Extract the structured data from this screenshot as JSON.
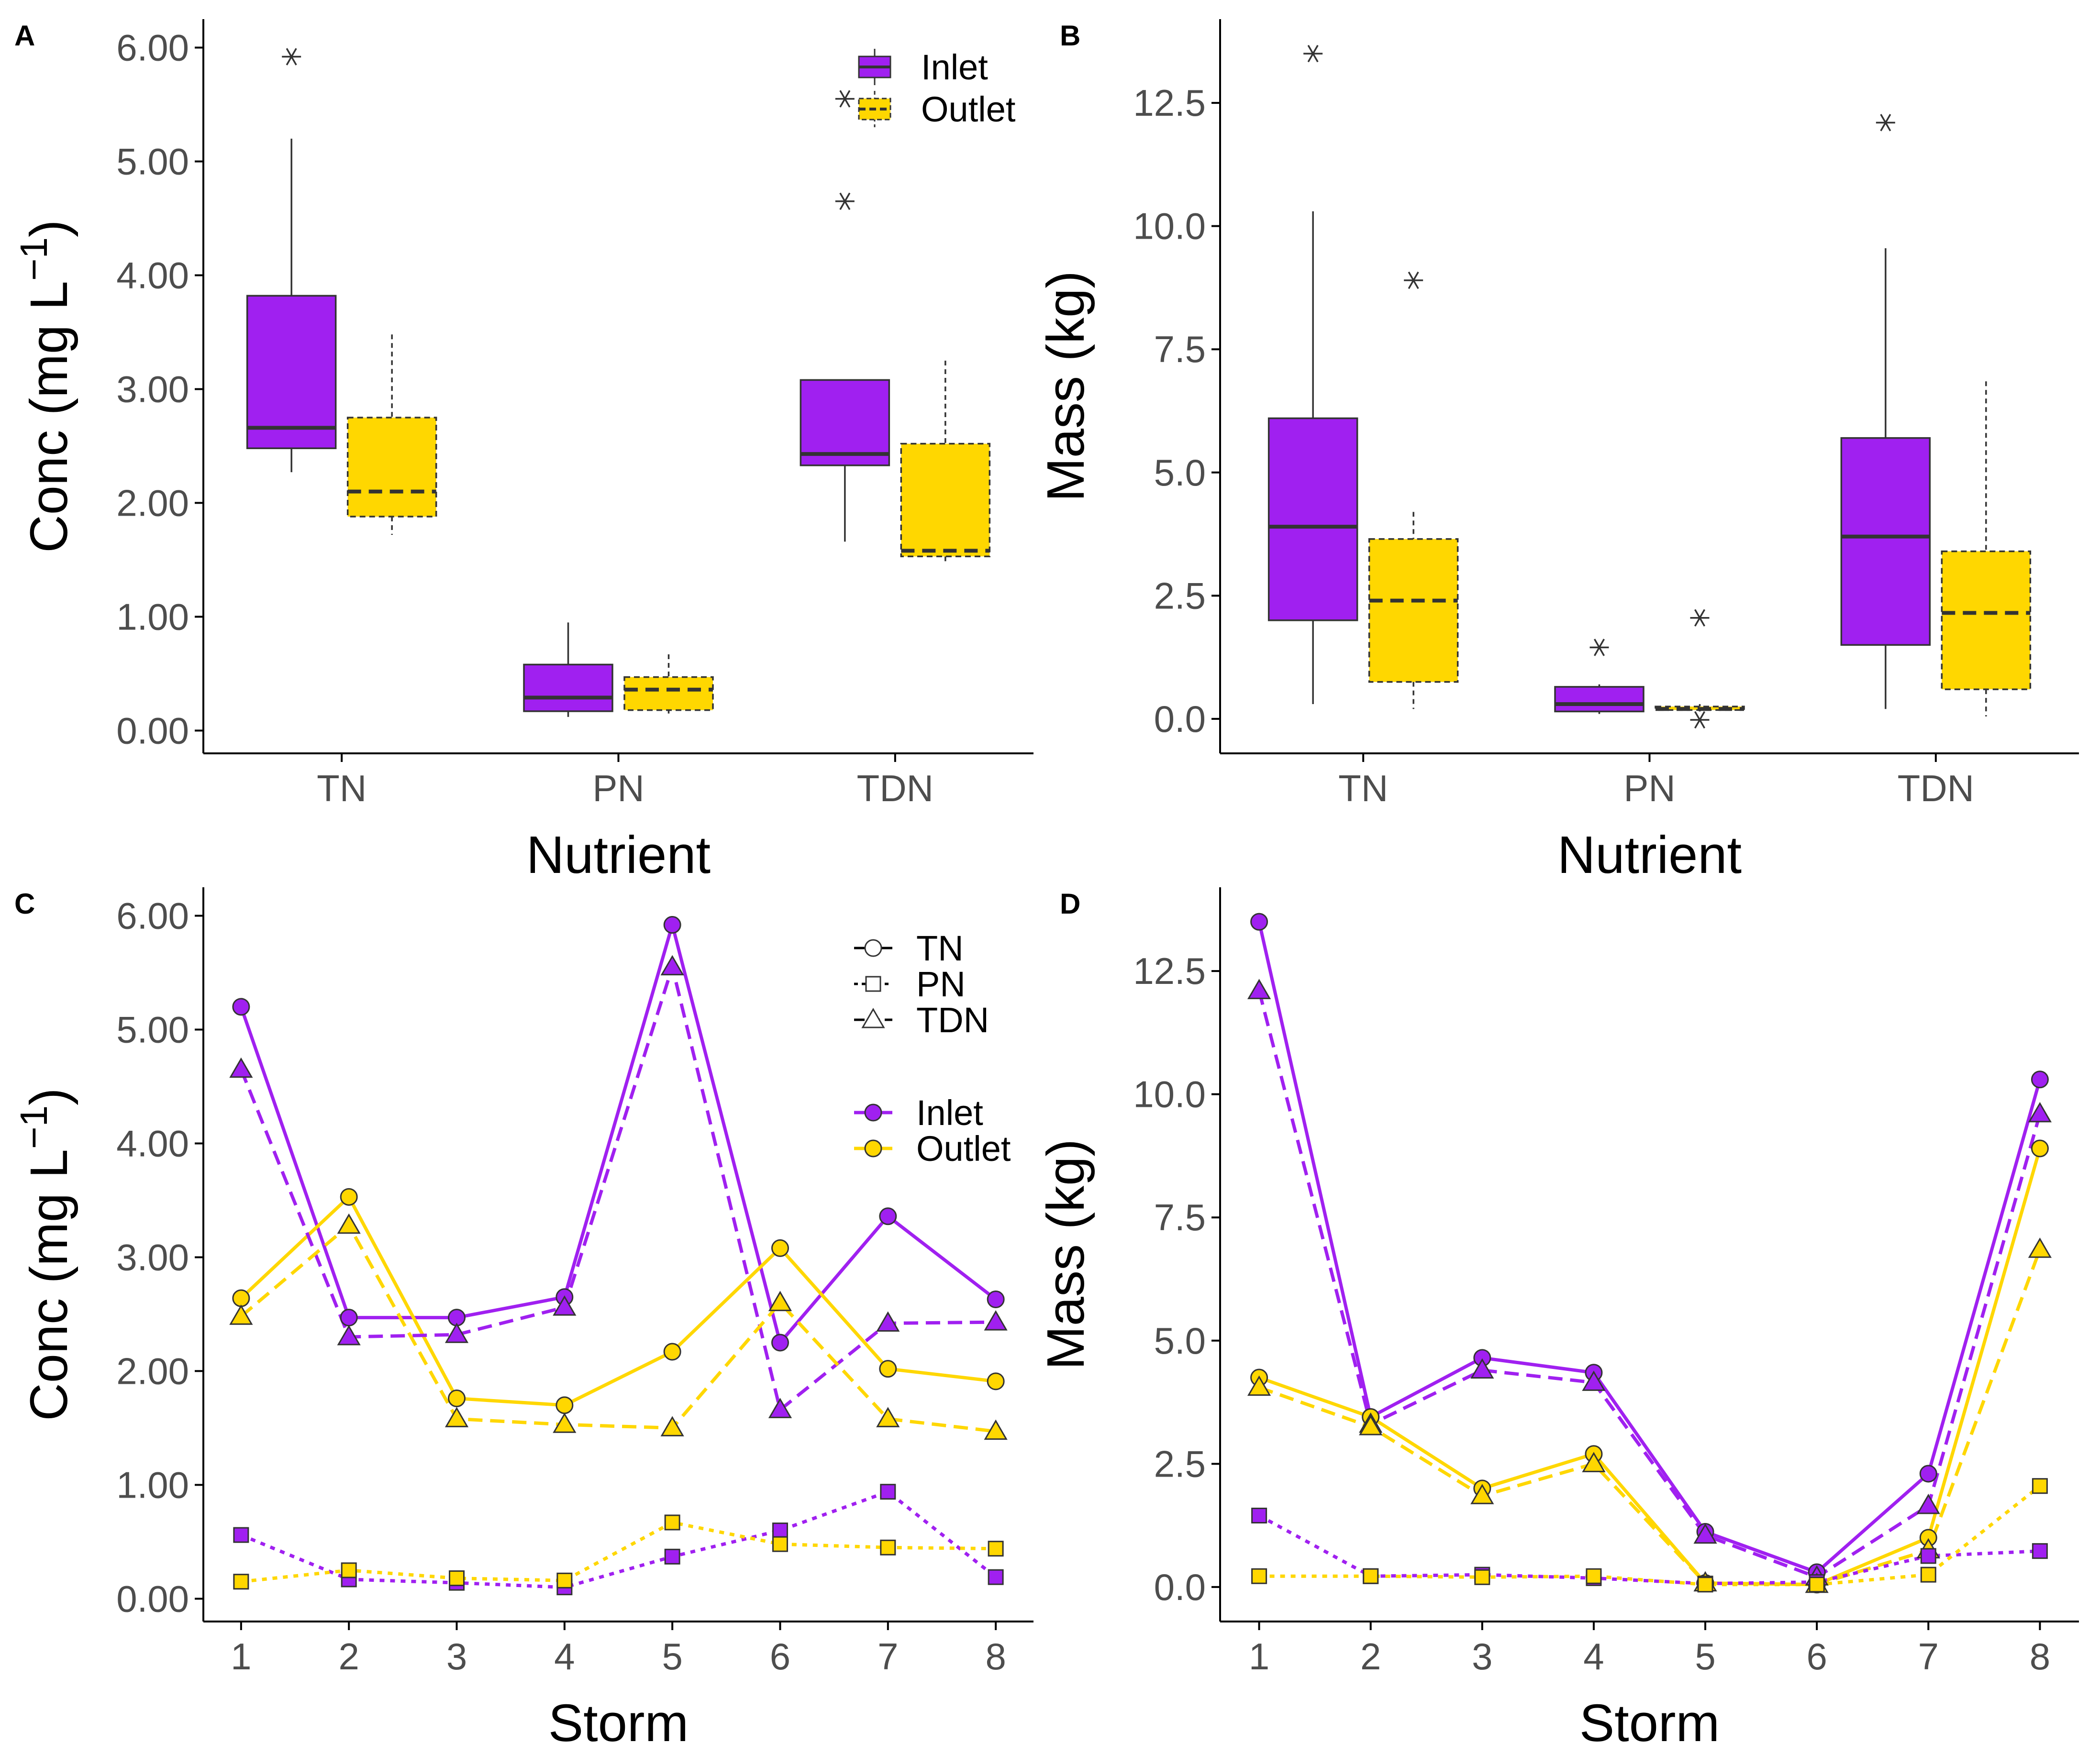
{
  "colors": {
    "inlet": "#A020F0",
    "outlet": "#FFD700",
    "outline": "#333333",
    "axis": "#000000"
  },
  "chart_data": [
    {
      "panel": "A",
      "type": "box",
      "xlabel": "Nutrient",
      "ylabel": "Conc (mg L",
      "ylabel_sup": "−1",
      "ylabel_close": ")",
      "ylim": [
        -0.2,
        6.25
      ],
      "yticks": [
        0,
        1,
        2,
        3,
        4,
        5,
        6
      ],
      "ytick_labels": [
        "0.00",
        "1.00",
        "2.00",
        "3.00",
        "4.00",
        "5.00",
        "6.00"
      ],
      "categories": [
        "TN",
        "PN",
        "TDN"
      ],
      "legend": {
        "items": [
          "Inlet",
          "Outlet"
        ],
        "position": "top-right"
      },
      "boxes": [
        {
          "category": "TN",
          "group": "Inlet",
          "min": 2.27,
          "q1": 2.48,
          "median": 2.66,
          "q3": 3.82,
          "max": 5.2,
          "outliers": [
            5.92
          ]
        },
        {
          "category": "TN",
          "group": "Outlet",
          "min": 1.72,
          "q1": 1.88,
          "median": 2.1,
          "q3": 2.75,
          "max": 3.48,
          "outliers": []
        },
        {
          "category": "PN",
          "group": "Inlet",
          "min": 0.12,
          "q1": 0.17,
          "median": 0.29,
          "q3": 0.58,
          "max": 0.95,
          "outliers": []
        },
        {
          "category": "PN",
          "group": "Outlet",
          "min": 0.15,
          "q1": 0.18,
          "median": 0.36,
          "q3": 0.47,
          "max": 0.67,
          "outliers": []
        },
        {
          "category": "TDN",
          "group": "Inlet",
          "min": 1.66,
          "q1": 2.33,
          "median": 2.43,
          "q3": 3.08,
          "max": 3.08,
          "outliers": [
            4.65,
            5.55
          ]
        },
        {
          "category": "TDN",
          "group": "Outlet",
          "min": 1.48,
          "q1": 1.53,
          "median": 1.58,
          "q3": 2.52,
          "max": 3.25,
          "outliers": []
        }
      ]
    },
    {
      "panel": "B",
      "type": "box",
      "xlabel": "Nutrient",
      "ylabel": "Mass (kg)",
      "ylim": [
        -0.7,
        14.2
      ],
      "yticks": [
        0,
        2.5,
        5,
        7.5,
        10,
        12.5
      ],
      "ytick_labels": [
        "0.0",
        "2.5",
        "5.0",
        "7.5",
        "10.0",
        "12.5"
      ],
      "categories": [
        "TN",
        "PN",
        "TDN"
      ],
      "boxes": [
        {
          "category": "TN",
          "group": "Inlet",
          "min": 0.3,
          "q1": 2.0,
          "median": 3.9,
          "q3": 6.1,
          "max": 10.3,
          "outliers": [
            13.5
          ]
        },
        {
          "category": "TN",
          "group": "Outlet",
          "min": 0.2,
          "q1": 0.75,
          "median": 2.4,
          "q3": 3.65,
          "max": 4.2,
          "outliers": [
            8.9
          ]
        },
        {
          "category": "PN",
          "group": "Inlet",
          "min": 0.1,
          "q1": 0.15,
          "median": 0.3,
          "q3": 0.65,
          "max": 0.7,
          "outliers": [
            1.45
          ]
        },
        {
          "category": "PN",
          "group": "Outlet",
          "min": 0.15,
          "q1": 0.18,
          "median": 0.2,
          "q3": 0.25,
          "max": 0.3,
          "outliers": [
            2.05,
            -0.02
          ]
        },
        {
          "category": "TDN",
          "group": "Inlet",
          "min": 0.2,
          "q1": 1.5,
          "median": 3.7,
          "q3": 5.7,
          "max": 9.55,
          "outliers": [
            12.1
          ]
        },
        {
          "category": "TDN",
          "group": "Outlet",
          "min": 0.05,
          "q1": 0.6,
          "median": 2.15,
          "q3": 3.4,
          "max": 6.85,
          "outliers": []
        }
      ]
    },
    {
      "panel": "C",
      "type": "line",
      "xlabel": "Storm",
      "ylabel": "Conc (mg L",
      "ylabel_sup": "−1",
      "ylabel_close": ")",
      "ylim": [
        -0.2,
        6.25
      ],
      "yticks": [
        0,
        1,
        2,
        3,
        4,
        5,
        6
      ],
      "ytick_labels": [
        "0.00",
        "1.00",
        "2.00",
        "3.00",
        "4.00",
        "5.00",
        "6.00"
      ],
      "xlim": [
        0.65,
        8.35
      ],
      "x": [
        1,
        2,
        3,
        4,
        5,
        6,
        7,
        8
      ],
      "x_labels": [
        "1",
        "2",
        "3",
        "4",
        "5",
        "6",
        "7",
        "8"
      ],
      "legend_nutrient": [
        "TN",
        "PN",
        "TDN"
      ],
      "legend_site": [
        "Inlet",
        "Outlet"
      ],
      "series": [
        {
          "name": "TN Inlet",
          "nutrient": "TN",
          "site": "Inlet",
          "values": [
            5.2,
            2.47,
            2.47,
            2.65,
            5.92,
            2.25,
            3.36,
            2.63
          ]
        },
        {
          "name": "TN Outlet",
          "nutrient": "TN",
          "site": "Outlet",
          "values": [
            2.64,
            3.53,
            1.76,
            1.7,
            2.17,
            3.08,
            2.02,
            1.91
          ]
        },
        {
          "name": "TDN Inlet",
          "nutrient": "TDN",
          "site": "Inlet",
          "values": [
            4.65,
            2.3,
            2.32,
            2.56,
            5.55,
            1.66,
            2.42,
            2.43
          ]
        },
        {
          "name": "TDN Outlet",
          "nutrient": "TDN",
          "site": "Outlet",
          "values": [
            2.48,
            3.28,
            1.58,
            1.53,
            1.5,
            2.6,
            1.58,
            1.47
          ]
        },
        {
          "name": "PN Inlet",
          "nutrient": "PN",
          "site": "Inlet",
          "values": [
            0.56,
            0.17,
            0.14,
            0.1,
            0.37,
            0.6,
            0.94,
            0.19
          ]
        },
        {
          "name": "PN Outlet",
          "nutrient": "PN",
          "site": "Outlet",
          "values": [
            0.15,
            0.25,
            0.18,
            0.16,
            0.67,
            0.48,
            0.45,
            0.44
          ]
        }
      ]
    },
    {
      "panel": "D",
      "type": "line",
      "xlabel": "Storm",
      "ylabel": "Mass (kg)",
      "ylim": [
        -0.7,
        14.2
      ],
      "yticks": [
        0,
        2.5,
        5,
        7.5,
        10,
        12.5
      ],
      "ytick_labels": [
        "0.0",
        "2.5",
        "5.0",
        "7.5",
        "10.0",
        "12.5"
      ],
      "xlim": [
        0.65,
        8.35
      ],
      "x": [
        1,
        2,
        3,
        4,
        5,
        6,
        7,
        8
      ],
      "x_labels": [
        "1",
        "2",
        "3",
        "4",
        "5",
        "6",
        "7",
        "8"
      ],
      "series": [
        {
          "name": "TN Inlet",
          "nutrient": "TN",
          "site": "Inlet",
          "values": [
            13.5,
            3.45,
            4.65,
            4.35,
            1.12,
            0.3,
            2.3,
            10.3
          ]
        },
        {
          "name": "TN Outlet",
          "nutrient": "TN",
          "site": "Outlet",
          "values": [
            4.25,
            3.45,
            2.0,
            2.7,
            0.08,
            0.05,
            1.0,
            8.9
          ]
        },
        {
          "name": "TDN Inlet",
          "nutrient": "TDN",
          "site": "Inlet",
          "values": [
            12.1,
            3.3,
            4.4,
            4.15,
            1.05,
            0.2,
            1.65,
            9.6
          ]
        },
        {
          "name": "TDN Outlet",
          "nutrient": "TDN",
          "site": "Outlet",
          "values": [
            4.05,
            3.25,
            1.85,
            2.5,
            0.08,
            0.05,
            0.75,
            6.85
          ]
        },
        {
          "name": "PN Inlet",
          "nutrient": "PN",
          "site": "Inlet",
          "values": [
            1.45,
            0.22,
            0.25,
            0.18,
            0.07,
            0.1,
            0.63,
            0.73
          ]
        },
        {
          "name": "PN Outlet",
          "nutrient": "PN",
          "site": "Outlet",
          "values": [
            0.22,
            0.22,
            0.2,
            0.22,
            0.05,
            0.05,
            0.25,
            2.05
          ]
        }
      ]
    }
  ]
}
